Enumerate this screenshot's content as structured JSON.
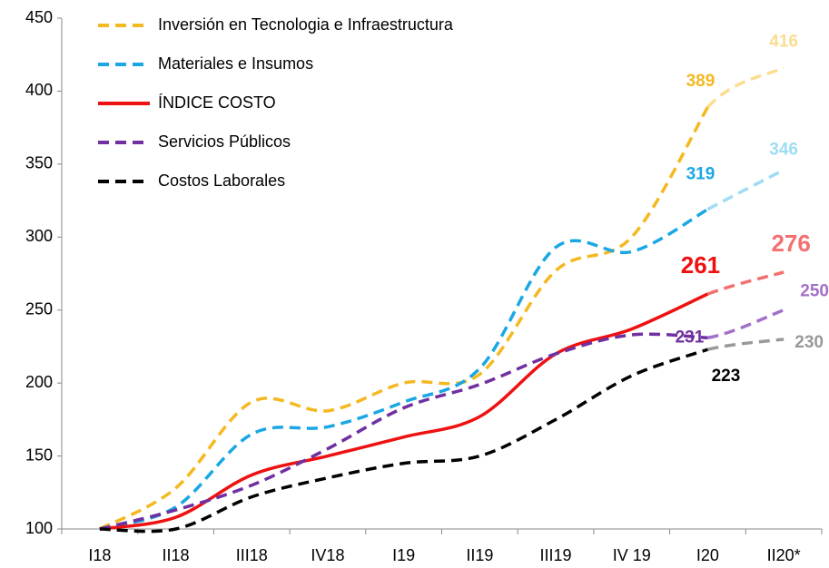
{
  "chart_data": {
    "type": "line",
    "categories": [
      "I18",
      "II18",
      "III18",
      "IV18",
      "I19",
      "II19",
      "III19",
      "IV 19",
      "I20",
      "II20*"
    ],
    "series": [
      {
        "name": "Inversión en Tecnologia e Infraestructura",
        "color": "#F5B820",
        "projection_color": "#FBDD8F",
        "dashed": true,
        "values": [
          100,
          128,
          187,
          181,
          200,
          206,
          277,
          300,
          389,
          416
        ]
      },
      {
        "name": "Materiales e Insumos",
        "color": "#1AA7E4",
        "projection_color": "#9FDCF5",
        "dashed": true,
        "values": [
          100,
          115,
          165,
          170,
          187,
          210,
          293,
          290,
          319,
          346
        ]
      },
      {
        "name": "ÍNDICE COSTO",
        "color": "#EE1111",
        "projection_color": "#F37070",
        "dashed": false,
        "values": [
          100,
          108,
          137,
          150,
          163,
          177,
          220,
          237,
          261,
          276
        ]
      },
      {
        "name": "Servicios Públicos",
        "color": "#7030A0",
        "projection_color": "#A370C8",
        "dashed": true,
        "values": [
          100,
          113,
          130,
          155,
          183,
          199,
          220,
          233,
          231,
          250
        ]
      },
      {
        "name": "Costos Laborales",
        "color": "#000000",
        "projection_color": "#999999",
        "dashed": true,
        "values": [
          100,
          100,
          122,
          135,
          145,
          150,
          175,
          205,
          223,
          230
        ]
      }
    ],
    "ylim": [
      100,
      450
    ],
    "yticks": [
      100,
      150,
      200,
      250,
      300,
      350,
      400,
      450
    ],
    "legend": "upper left"
  }
}
